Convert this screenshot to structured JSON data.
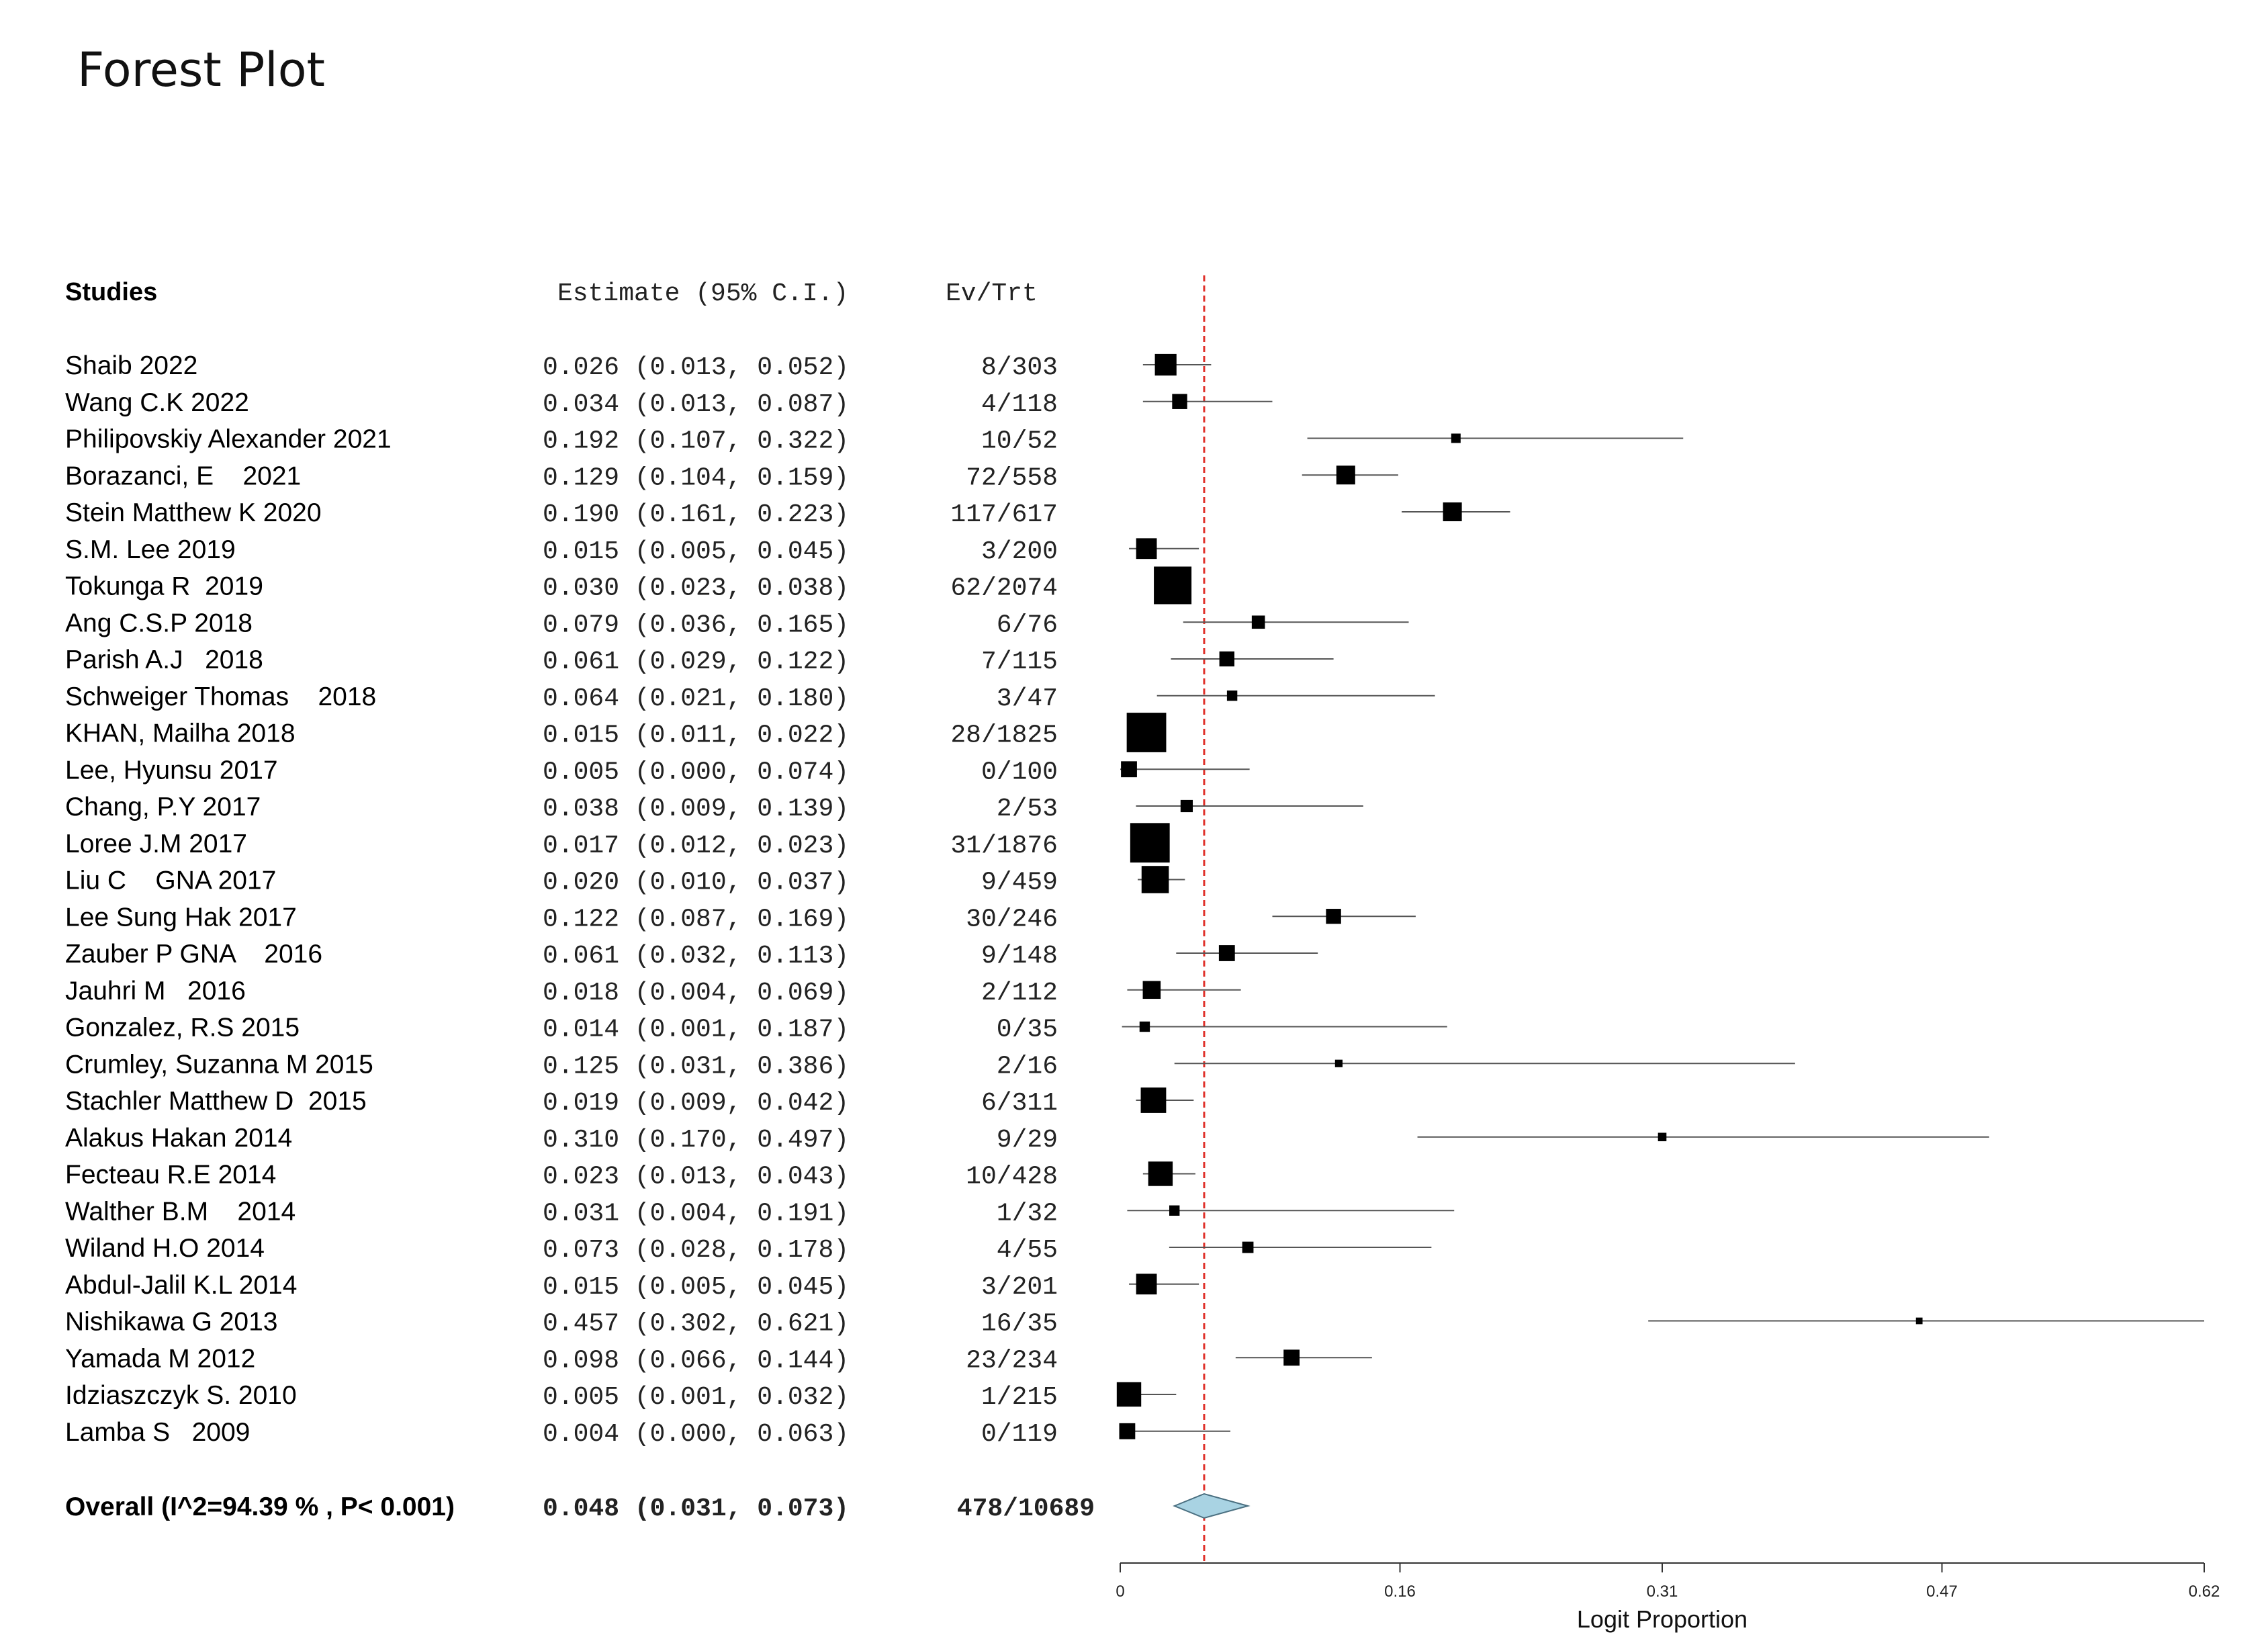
{
  "chart_data": {
    "type": "forest",
    "title": "Forest Plot",
    "headers": {
      "studies": "Studies",
      "estimate": "Estimate (95% C.I.)",
      "events": "Ev/Trt"
    },
    "studies": [
      {
        "label": "Shaib 2022",
        "est": 0.026,
        "lo": 0.013,
        "hi": 0.052,
        "ev": "8/303",
        "weight": 2.3
      },
      {
        "label": "Wang C.K 2022",
        "est": 0.034,
        "lo": 0.013,
        "hi": 0.087,
        "ev": "4/118",
        "weight": 1.6
      },
      {
        "label": "Philipovskiy Alexander 2021",
        "est": 0.192,
        "lo": 0.107,
        "hi": 0.322,
        "ev": "10/52",
        "weight": 1.0
      },
      {
        "label": "Borazanci, E    2021",
        "est": 0.129,
        "lo": 0.104,
        "hi": 0.159,
        "ev": "72/558",
        "weight": 2.0
      },
      {
        "label": "Stein Matthew K 2020",
        "est": 0.19,
        "lo": 0.161,
        "hi": 0.223,
        "ev": "117/617",
        "weight": 2.0
      },
      {
        "label": "S.M. Lee 2019",
        "est": 0.015,
        "lo": 0.005,
        "hi": 0.045,
        "ev": "3/200",
        "weight": 2.2
      },
      {
        "label": "Tokunga R  2019",
        "est": 0.03,
        "lo": 0.023,
        "hi": 0.038,
        "ev": "62/2074",
        "weight": 4.0
      },
      {
        "label": "Ang C.S.P 2018",
        "est": 0.079,
        "lo": 0.036,
        "hi": 0.165,
        "ev": "6/76",
        "weight": 1.4
      },
      {
        "label": "Parish A.J   2018",
        "est": 0.061,
        "lo": 0.029,
        "hi": 0.122,
        "ev": "7/115",
        "weight": 1.6
      },
      {
        "label": "Schweiger Thomas    2018",
        "est": 0.064,
        "lo": 0.021,
        "hi": 0.18,
        "ev": "3/47",
        "weight": 1.1
      },
      {
        "label": "KHAN, Mailha 2018",
        "est": 0.015,
        "lo": 0.011,
        "hi": 0.022,
        "ev": "28/1825",
        "weight": 4.2
      },
      {
        "label": "Lee, Hyunsu 2017",
        "est": 0.005,
        "lo": 0.0,
        "hi": 0.074,
        "ev": "0/100",
        "weight": 1.7
      },
      {
        "label": "Chang, P.Y 2017",
        "est": 0.038,
        "lo": 0.009,
        "hi": 0.139,
        "ev": "2/53",
        "weight": 1.3
      },
      {
        "label": "Loree J.M 2017",
        "est": 0.017,
        "lo": 0.012,
        "hi": 0.023,
        "ev": "31/1876",
        "weight": 4.2
      },
      {
        "label": "Liu C    GNA 2017",
        "est": 0.02,
        "lo": 0.01,
        "hi": 0.037,
        "ev": "9/459",
        "weight": 2.9
      },
      {
        "label": "Lee Sung Hak 2017",
        "est": 0.122,
        "lo": 0.087,
        "hi": 0.169,
        "ev": "30/246",
        "weight": 1.6
      },
      {
        "label": "Zauber P GNA    2016",
        "est": 0.061,
        "lo": 0.032,
        "hi": 0.113,
        "ev": "9/148",
        "weight": 1.7
      },
      {
        "label": "Jauhri M   2016",
        "est": 0.018,
        "lo": 0.004,
        "hi": 0.069,
        "ev": "2/112",
        "weight": 1.9
      },
      {
        "label": "Gonzalez, R.S 2015",
        "est": 0.014,
        "lo": 0.001,
        "hi": 0.187,
        "ev": "0/35",
        "weight": 1.1
      },
      {
        "label": "Crumley, Suzanna M 2015",
        "est": 0.125,
        "lo": 0.031,
        "hi": 0.386,
        "ev": "2/16",
        "weight": 0.8
      },
      {
        "label": "Stachler Matthew D  2015",
        "est": 0.019,
        "lo": 0.009,
        "hi": 0.042,
        "ev": "6/311",
        "weight": 2.7
      },
      {
        "label": "Alakus Hakan 2014",
        "est": 0.31,
        "lo": 0.17,
        "hi": 0.497,
        "ev": "9/29",
        "weight": 0.9
      },
      {
        "label": "Fecteau R.E 2014",
        "est": 0.023,
        "lo": 0.013,
        "hi": 0.043,
        "ev": "10/428",
        "weight": 2.6
      },
      {
        "label": "Walther B.M    2014",
        "est": 0.031,
        "lo": 0.004,
        "hi": 0.191,
        "ev": "1/32",
        "weight": 1.1
      },
      {
        "label": "Wiland H.O 2014",
        "est": 0.073,
        "lo": 0.028,
        "hi": 0.178,
        "ev": "4/55",
        "weight": 1.2
      },
      {
        "label": "Abdul-Jalil K.L 2014",
        "est": 0.015,
        "lo": 0.005,
        "hi": 0.045,
        "ev": "3/201",
        "weight": 2.2
      },
      {
        "label": "Nishikawa G 2013",
        "est": 0.457,
        "lo": 0.302,
        "hi": 0.621,
        "ev": "16/35",
        "weight": 0.7
      },
      {
        "label": "Yamada M 2012",
        "est": 0.098,
        "lo": 0.066,
        "hi": 0.144,
        "ev": "23/234",
        "weight": 1.7
      },
      {
        "label": "Idziaszczyk S. 2010",
        "est": 0.005,
        "lo": 0.001,
        "hi": 0.032,
        "ev": "1/215",
        "weight": 2.6
      },
      {
        "label": "Lamba S   2009",
        "est": 0.004,
        "lo": 0.0,
        "hi": 0.063,
        "ev": "0/119",
        "weight": 1.7
      }
    ],
    "overall": {
      "label": "Overall (I^2=94.39 % , P< 0.001)",
      "est": 0.048,
      "lo": 0.031,
      "hi": 0.073,
      "ev": "478/10689"
    },
    "xaxis": {
      "label": "Logit Proportion",
      "ticks": [
        0,
        0.16,
        0.31,
        0.47,
        0.62
      ],
      "tick_labels": [
        "0",
        "0.16",
        "0.31",
        "0.47",
        "0.62"
      ],
      "range": [
        0,
        0.62
      ]
    },
    "reference_line": 0.048,
    "colors": {
      "marker": "#000000",
      "ci_line": "#555555",
      "reference": "#e0322b",
      "diamond_fill": "#a9d3e3",
      "diamond_stroke": "#4a6f80"
    }
  }
}
